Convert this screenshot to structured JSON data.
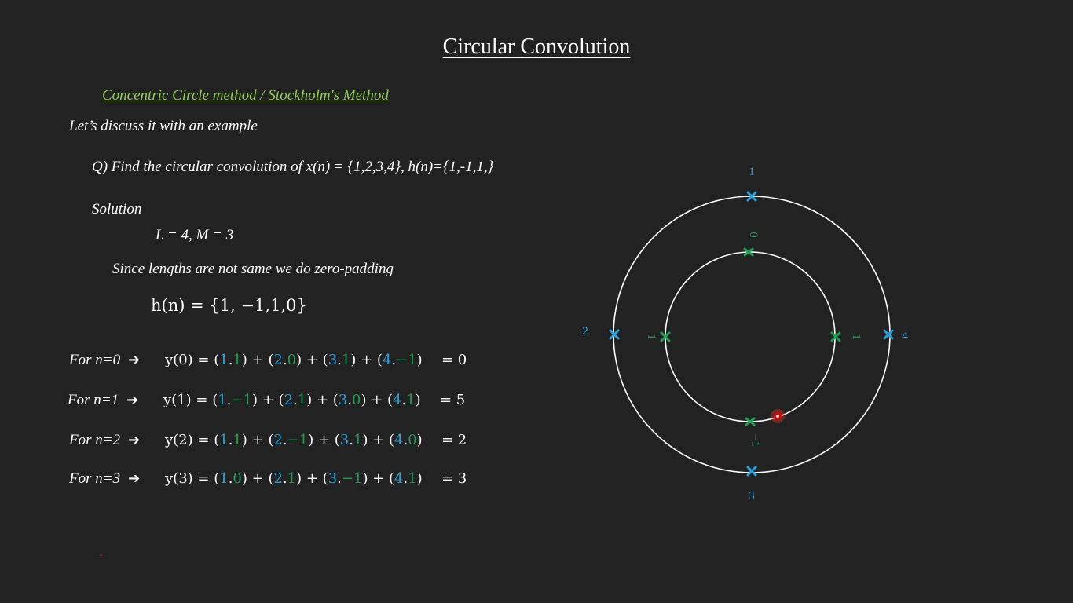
{
  "slide": {
    "title": "Circular Convolution",
    "subtitle": "Concentric Circle method / Stockholm's Method",
    "intro": "Let’s discuss it with an example",
    "question": "Q) Find the circular convolution of x(n) = {1,2,3,4}, h(n)={1,-1,1,}",
    "solution_label": "Solution",
    "lengths": "L = 4, M = 3",
    "padding_note": "Since lengths are not same we do zero-padding",
    "padded_h": "h(n) = {1, −1,1,0}"
  },
  "rows": [
    {
      "label": "For n=0",
      "lhs": "y(0) = ",
      "terms": [
        [
          "1",
          "1"
        ],
        [
          "2",
          "0"
        ],
        [
          "3",
          "1"
        ],
        [
          "4",
          "−1"
        ]
      ],
      "result": "= 0"
    },
    {
      "label": "For n=1",
      "lhs": "y(1) = ",
      "terms": [
        [
          "1",
          "−1"
        ],
        [
          "2",
          "1"
        ],
        [
          "3",
          "0"
        ],
        [
          "4",
          "1"
        ]
      ],
      "result": "= 5"
    },
    {
      "label": "For n=2",
      "lhs": "y(2) = ",
      "terms": [
        [
          "1",
          "1"
        ],
        [
          "2",
          "−1"
        ],
        [
          "3",
          "1"
        ],
        [
          "4",
          "0"
        ]
      ],
      "result": "= 2"
    },
    {
      "label": "For n=3",
      "lhs": "y(3) = ",
      "terms": [
        [
          "1",
          "0"
        ],
        [
          "2",
          "1"
        ],
        [
          "3",
          "−1"
        ],
        [
          "4",
          "1"
        ]
      ],
      "result": "= 3"
    }
  ],
  "diagram": {
    "outer_labels": {
      "top": "1",
      "left": "2",
      "bottom": "3",
      "right": "4"
    },
    "inner_labels": {
      "top": "0",
      "left": "1",
      "bottom": "−1",
      "right": "1"
    },
    "colors": {
      "outer": "#27a3e0",
      "inner": "#1f9e55",
      "ring": "#ffffff",
      "title_underline": "#ffffff",
      "subtitle": "#92d050"
    }
  }
}
